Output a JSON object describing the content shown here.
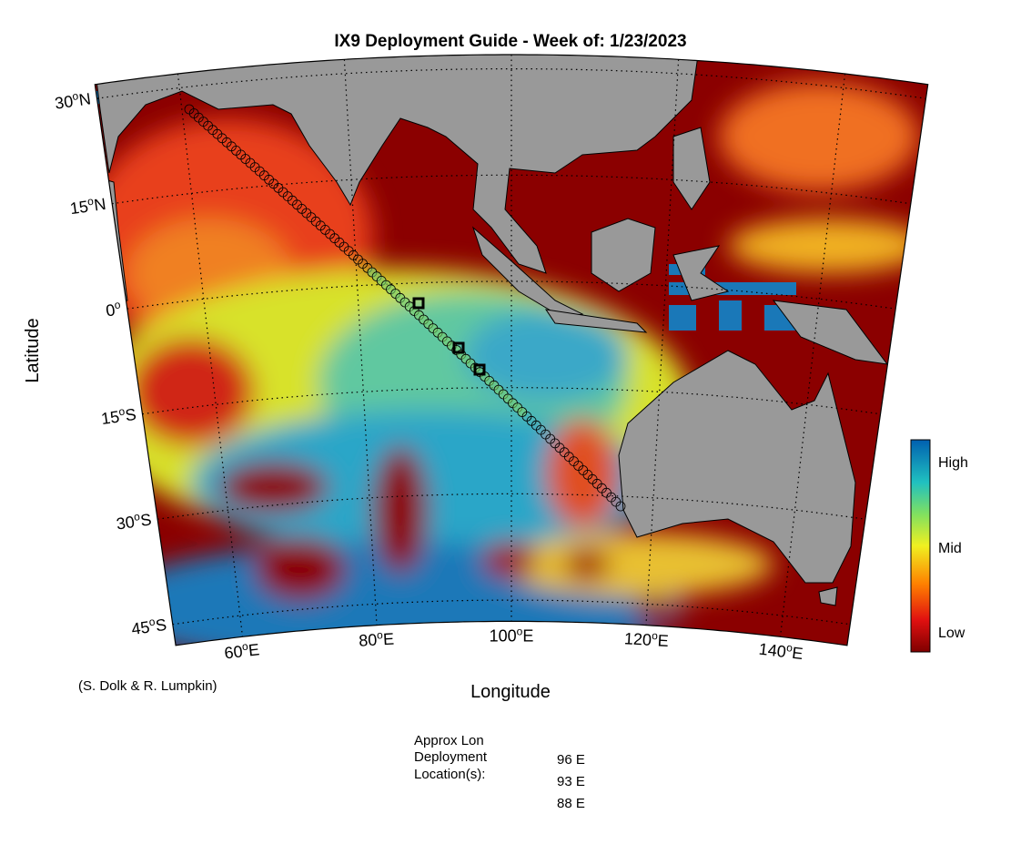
{
  "map": {
    "title": "IX9 Deployment Guide - Week of: 1/23/2023",
    "y_axis_label": "Latitude",
    "x_axis_label": "Longitude",
    "credit": "(S. Dolk & R. Lumpkin)",
    "degree_mark": "o",
    "lat_ticks": [
      {
        "value": 30,
        "deg": "30",
        "hemi": "N"
      },
      {
        "value": 15,
        "deg": "15",
        "hemi": "N"
      },
      {
        "value": 0,
        "deg": "0",
        "hemi": ""
      },
      {
        "value": -15,
        "deg": "15",
        "hemi": "S"
      },
      {
        "value": -30,
        "deg": "30",
        "hemi": "S"
      },
      {
        "value": -45,
        "deg": "45",
        "hemi": "S"
      }
    ],
    "lon_ticks": [
      {
        "value": 60,
        "deg": "60",
        "hemi": "E"
      },
      {
        "value": 80,
        "deg": "80",
        "hemi": "E"
      },
      {
        "value": 100,
        "deg": "100",
        "hemi": "E"
      },
      {
        "value": 120,
        "deg": "120",
        "hemi": "E"
      },
      {
        "value": 140,
        "deg": "140",
        "hemi": "E"
      }
    ],
    "colorbar_labels": [
      "High",
      "Mid",
      "Low"
    ],
    "deployment": {
      "heading": [
        "Approx Lon",
        "Deployment",
        "Location(s):"
      ],
      "locations": [
        "96 E",
        "93 E",
        "88 E"
      ]
    }
  }
}
